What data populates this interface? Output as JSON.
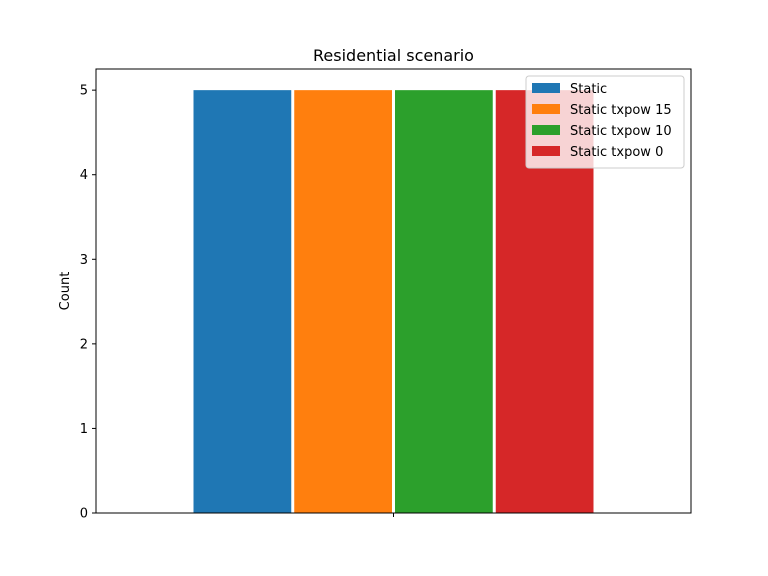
{
  "chart_data": {
    "type": "bar",
    "title": "Residential scenario",
    "xlabel": "",
    "ylabel": "Count",
    "categories": [
      ""
    ],
    "ylim": [
      0,
      5.25
    ],
    "yticks": [
      0,
      1,
      2,
      3,
      4,
      5
    ],
    "series": [
      {
        "name": "Static",
        "values": [
          5
        ],
        "color": "#1f77b4"
      },
      {
        "name": "Static txpow 15",
        "values": [
          5
        ],
        "color": "#ff7f0e"
      },
      {
        "name": "Static txpow 10",
        "values": [
          5
        ],
        "color": "#2ca02c"
      },
      {
        "name": "Static txpow 0",
        "values": [
          5
        ],
        "color": "#d62728"
      }
    ],
    "legend_position": "top-right",
    "grid": false
  }
}
